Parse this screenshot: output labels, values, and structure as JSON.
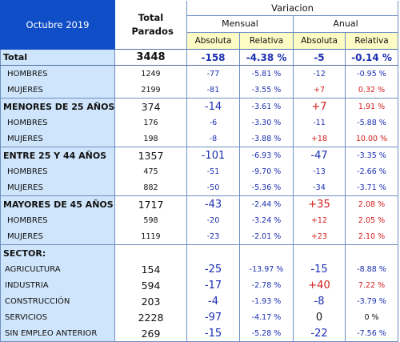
{
  "header": {
    "period": "Octubre 2019",
    "total_label": "Total Parados",
    "variation_label": "Variacion",
    "monthly_label": "Mensual",
    "annual_label": "Anual",
    "abs_label": "Absoluta",
    "rel_label": "Relativa"
  },
  "rows": [
    {
      "label": "Total",
      "total": "3448",
      "m_abs": "-158",
      "m_rel": "-4.38 %",
      "a_abs": "-5",
      "a_rel": "-0.14 %"
    },
    {
      "label": "HOMBRES",
      "total": "1249",
      "m_abs": "-77",
      "m_rel": "-5.81 %",
      "a_abs": "-12",
      "a_rel": "-0.95 %"
    },
    {
      "label": "MUJERES",
      "total": "2199",
      "m_abs": "-81",
      "m_rel": "-3.55 %",
      "a_abs": "+7",
      "a_rel": "0.32 %"
    },
    {
      "label": "MENORES DE 25 AÑOS:",
      "total": "374",
      "m_abs": "-14",
      "m_rel": "-3.61 %",
      "a_abs": "+7",
      "a_rel": "1.91 %"
    },
    {
      "label": "HOMBRES",
      "total": "176",
      "m_abs": "-6",
      "m_rel": "-3.30 %",
      "a_abs": "-11",
      "a_rel": "-5.88 %"
    },
    {
      "label": "MUJERES",
      "total": "198",
      "m_abs": "-8",
      "m_rel": "-3.88 %",
      "a_abs": "+18",
      "a_rel": "10.00 %"
    },
    {
      "label": "ENTRE 25 Y 44 AÑOS",
      "total": "1357",
      "m_abs": "-101",
      "m_rel": "-6.93 %",
      "a_abs": "-47",
      "a_rel": "-3.35 %"
    },
    {
      "label": "HOMBRES",
      "total": "475",
      "m_abs": "-51",
      "m_rel": "-9.70 %",
      "a_abs": "-13",
      "a_rel": "-2.66 %"
    },
    {
      "label": "MUJERES",
      "total": "882",
      "m_abs": "-50",
      "m_rel": "-5.36 %",
      "a_abs": "-34",
      "a_rel": "-3.71 %"
    },
    {
      "label": "MAYORES DE 45 AÑOS",
      "total": "1717",
      "m_abs": "-43",
      "m_rel": "-2.44 %",
      "a_abs": "+35",
      "a_rel": "2.08 %"
    },
    {
      "label": "HOMBRES",
      "total": "598",
      "m_abs": "-20",
      "m_rel": "-3.24 %",
      "a_abs": "+12",
      "a_rel": "2.05 %"
    },
    {
      "label": "MUJERES",
      "total": "1119",
      "m_abs": "-23",
      "m_rel": "-2.01 %",
      "a_abs": "+23",
      "a_rel": "2.10 %"
    },
    {
      "label": "SECTOR:",
      "total": "",
      "m_abs": "",
      "m_rel": "",
      "a_abs": "",
      "a_rel": ""
    },
    {
      "label": "AGRICULTURA",
      "total": "154",
      "m_abs": "-25",
      "m_rel": "-13.97 %",
      "a_abs": "-15",
      "a_rel": "-8.88 %"
    },
    {
      "label": "INDUSTRIA",
      "total": "594",
      "m_abs": "-17",
      "m_rel": "-2.78 %",
      "a_abs": "+40",
      "a_rel": "7.22 %"
    },
    {
      "label": "CONSTRUCCIÓN",
      "total": "203",
      "m_abs": "-4",
      "m_rel": "-1.93 %",
      "a_abs": "-8",
      "a_rel": "-3.79 %"
    },
    {
      "label": "SERVICIOS",
      "total": "2228",
      "m_abs": "-97",
      "m_rel": "-4.17 %",
      "a_abs": "0",
      "a_rel": "0 %"
    },
    {
      "label": "SIN EMPLEO ANTERIOR",
      "total": "269",
      "m_abs": "-15",
      "m_rel": "-5.28 %",
      "a_abs": "-22",
      "a_rel": "-7.56 %"
    }
  ]
}
